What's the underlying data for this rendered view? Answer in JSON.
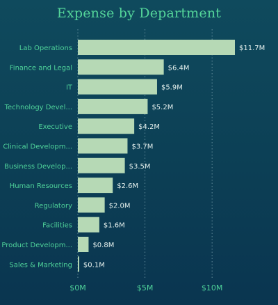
{
  "chart_data": {
    "type": "bar",
    "orientation": "horizontal",
    "title": "Expense by Department",
    "categories": [
      "Lab Operations",
      "Finance and Legal",
      "IT",
      "Technology Devel...",
      "Executive",
      "Clinical Developm...",
      "Business Develop...",
      "Human Resources",
      "Regulatory",
      "Facilities",
      "Product Developm...",
      "Sales & Marketing"
    ],
    "values": [
      11.7,
      6.4,
      5.9,
      5.2,
      4.2,
      3.7,
      3.5,
      2.6,
      2.0,
      1.6,
      0.8,
      0.1
    ],
    "value_labels": [
      "$11.7M",
      "$6.4M",
      "$5.9M",
      "$5.2M",
      "$4.2M",
      "$3.7M",
      "$3.5M",
      "$2.6M",
      "$2.0M",
      "$1.6M",
      "$0.8M",
      "$0.1M"
    ],
    "x_ticks": [
      0,
      5,
      10
    ],
    "x_tick_labels": [
      "$0M",
      "$5M",
      "$10M"
    ],
    "xlim": [
      0,
      11.7
    ],
    "grid": "vertical dotted",
    "legend": "none",
    "colors": {
      "bar": "#b6d9b5",
      "category_label": "#4fd39a",
      "value_label": "#e6f1ee",
      "tick_label": "#4fd39a",
      "title": "#54d59a",
      "grid": "#7fa6b2"
    }
  }
}
